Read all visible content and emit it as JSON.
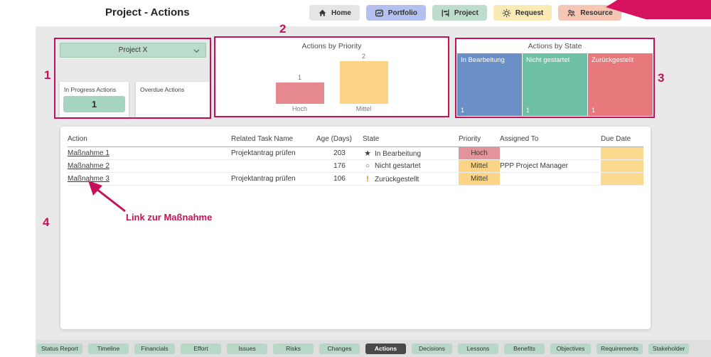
{
  "header": {
    "title": "Project - Actions",
    "nav": [
      {
        "label": "Home",
        "icon": "home-icon",
        "bg": "#e5e5e5"
      },
      {
        "label": "Portfolio",
        "icon": "portfolio-icon",
        "bg": "#b3c0f0"
      },
      {
        "label": "Project",
        "icon": "project-icon",
        "bg": "#bedccb"
      },
      {
        "label": "Request",
        "icon": "request-icon",
        "bg": "#faeab4"
      },
      {
        "label": "Resource",
        "icon": "resource-icon",
        "bg": "#f6c6b4"
      }
    ],
    "ribbon_color": "#d6115e"
  },
  "filters": {
    "project_dropdown": {
      "value": "Project X"
    },
    "cards": [
      {
        "label": "In Progress Actions",
        "value": "1"
      },
      {
        "label": "Overdue Actions",
        "value": ""
      }
    ]
  },
  "annotations": {
    "n1": "1",
    "n2": "2",
    "n3": "3",
    "n4": "4",
    "link_note": "Link zur Maßnahme",
    "color": "#c6105a"
  },
  "chart_data": [
    {
      "type": "bar",
      "title": "Actions by Priority",
      "categories": [
        "Hoch",
        "Mittel"
      ],
      "values": [
        1,
        2
      ],
      "colors": [
        "#e78a90",
        "#fcd488"
      ],
      "ylim": [
        0,
        2
      ],
      "data_labels": true
    },
    {
      "type": "treemap",
      "title": "Actions by State",
      "categories": [
        "In Bearbeitung",
        "Nicht gestartet",
        "Zurückgestellt"
      ],
      "values": [
        1,
        1,
        1
      ],
      "colors": [
        "#6b8fc7",
        "#6ec0a4",
        "#e7787c"
      ]
    }
  ],
  "table": {
    "columns": [
      "Action",
      "Related Task Name",
      "Age (Days)",
      "State",
      "Priority",
      "Assigned To",
      "Due Date"
    ],
    "rows": [
      {
        "action": "Maßnahme 1",
        "related_task": "Projektantrag prüfen",
        "age": "203",
        "state": "In Bearbeitung",
        "state_icon": "star",
        "priority": "Hoch",
        "assigned_to": "",
        "due_date": ""
      },
      {
        "action": "Maßnahme 2",
        "related_task": "",
        "age": "176",
        "state": "Nicht gestartet",
        "state_icon": "circle",
        "priority": "Mittel",
        "assigned_to": "PPP Project Manager",
        "due_date": ""
      },
      {
        "action": "Maßnahme 3",
        "related_task": "Projektantrag prüfen",
        "age": "106",
        "state": "Zurückgestellt",
        "state_icon": "exclamation",
        "priority": "Mittel",
        "assigned_to": "",
        "due_date": ""
      }
    ],
    "priority_colors": {
      "Hoch": "#e4939a",
      "Mittel": "#fbd485"
    },
    "due_cell_color": "#fbd98f"
  },
  "tabs": {
    "items": [
      "Status Report",
      "Timeline",
      "Financials",
      "Effort",
      "Issues",
      "Risks",
      "Changes",
      "Actions",
      "Decisions",
      "Lessons",
      "Benefits",
      "Objectives",
      "Requirements",
      "Stakeholder"
    ],
    "active": "Actions"
  }
}
